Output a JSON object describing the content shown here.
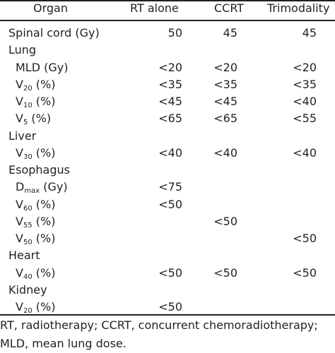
{
  "header": {
    "organ": "Organ",
    "rt_alone": "RT alone",
    "ccrt": "CCRT",
    "trimodality": "Trimodality"
  },
  "rows": [
    {
      "label": "Spinal cord (Gy)",
      "rt": "50",
      "ccrt": "45",
      "tri": "45"
    },
    {
      "label": "Lung"
    },
    {
      "label": "MLD (Gy)",
      "rt": "<20",
      "ccrt": "<20",
      "tri": "<20"
    },
    {
      "label_main": "V",
      "label_sub": "20",
      "label_rest": " (%)",
      "rt": "<35",
      "ccrt": "<35",
      "tri": "<35"
    },
    {
      "label_main": "V",
      "label_sub": "10",
      "label_rest": " (%)",
      "rt": "<45",
      "ccrt": "<45",
      "tri": "<40"
    },
    {
      "label_main": "V",
      "label_sub": "5",
      "label_rest": " (%)",
      "rt": "<65",
      "ccrt": "<65",
      "tri": "<55"
    },
    {
      "label": "Liver"
    },
    {
      "label_main": "V",
      "label_sub": "30",
      "label_rest": " (%)",
      "rt": "<40",
      "ccrt": "<40",
      "tri": "<40"
    },
    {
      "label": "Esophagus"
    },
    {
      "label_main": "D",
      "label_sub": "max",
      "label_rest": " (Gy)",
      "rt": "<75"
    },
    {
      "label_main": "V",
      "label_sub": "60",
      "label_rest": " (%)",
      "rt": "<50"
    },
    {
      "label_main": "V",
      "label_sub": "55",
      "label_rest": " (%)",
      "ccrt": "<50"
    },
    {
      "label_main": "V",
      "label_sub": "50",
      "label_rest": " (%)",
      "tri": "<50"
    },
    {
      "label": "Heart"
    },
    {
      "label_main": "V",
      "label_sub": "40",
      "label_rest": " (%)",
      "rt": "<50",
      "ccrt": "<50",
      "tri": "<50"
    },
    {
      "label": "Kidney"
    },
    {
      "label_main": "V",
      "label_sub": "20",
      "label_rest": " (%)",
      "rt": "<50"
    }
  ],
  "footnote": "RT, radiotherapy; CCRT, concurrent chemoradiotherapy; MLD, mean lung dose."
}
